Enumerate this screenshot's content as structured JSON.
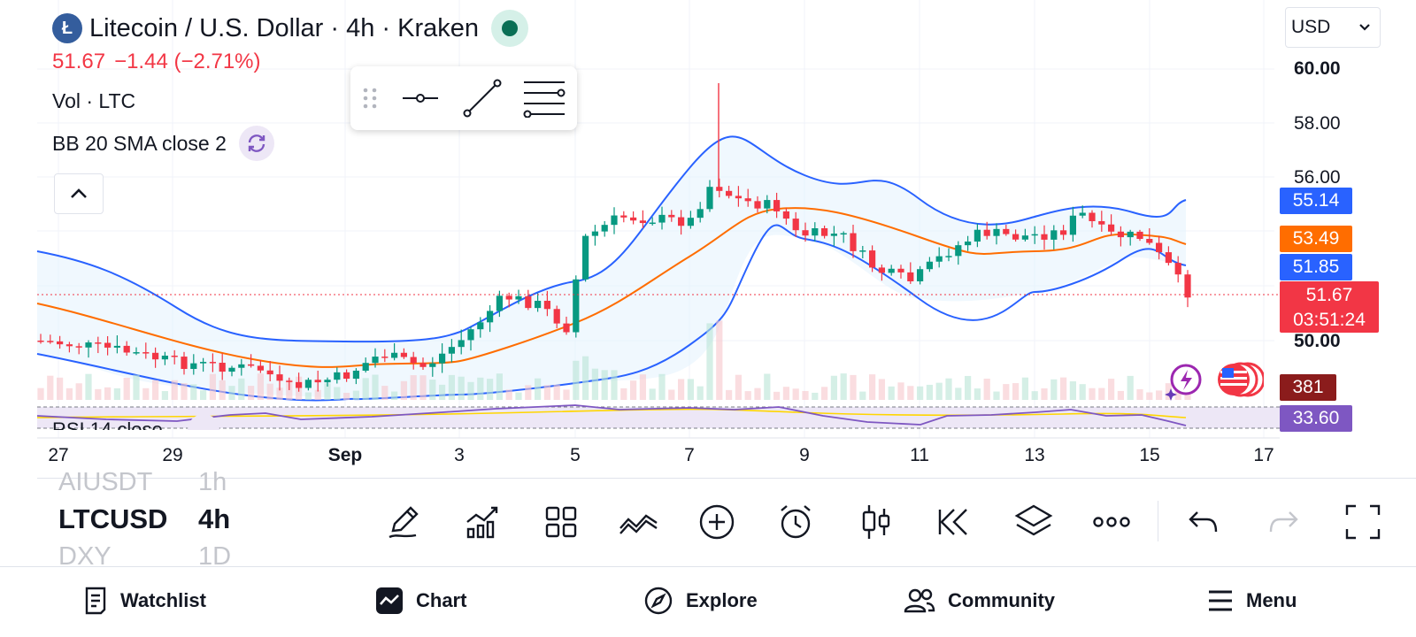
{
  "header": {
    "logo_letter": "Ł",
    "title": "Litecoin / U.S. Dollar · 4h · Kraken",
    "last_price": "51.67",
    "change": "−1.44 (−2.71%)",
    "volume_label": "Vol · LTC",
    "bb_label": "BB 20 SMA close 2",
    "currency": "USD"
  },
  "price_axis": {
    "labels": [
      "60.00",
      "58.00",
      "56.00",
      "50.00"
    ],
    "tags": {
      "bb_upper": "55.14",
      "bb_basis": "53.49",
      "bb_lower": "51.85",
      "last": "51.67",
      "countdown": "03:51:24",
      "volume": "381",
      "rsi": "33.60"
    },
    "colors": {
      "upper": "#2962ff",
      "basis": "#ff6d00",
      "last": "#f23645",
      "volume": "#8b1c1c",
      "rsi": "#7e57c2"
    }
  },
  "time_axis": {
    "labels": [
      "27",
      "29",
      "Sep",
      "3",
      "5",
      "7",
      "9",
      "11",
      "13",
      "15",
      "17"
    ]
  },
  "rsi": {
    "label": "RSI 14 close"
  },
  "symbol_picker": {
    "prev": {
      "symbol": "AIUSDT",
      "interval": "1h"
    },
    "current": {
      "symbol": "LTCUSD",
      "interval": "4h"
    },
    "next": {
      "symbol": "DXY",
      "interval": "1D"
    }
  },
  "toolbar": {
    "icons": [
      "pencil-icon",
      "indicators-icon",
      "layout-grid-icon",
      "compare-icon",
      "add-icon",
      "alert-icon",
      "candles-icon",
      "replay-icon",
      "layers-icon",
      "more-icon",
      "undo-icon",
      "redo-icon",
      "fullscreen-icon"
    ]
  },
  "bottom_nav": {
    "items": [
      {
        "label": "Watchlist",
        "icon": "watchlist-icon"
      },
      {
        "label": "Chart",
        "icon": "chart-icon"
      },
      {
        "label": "Explore",
        "icon": "compass-icon"
      },
      {
        "label": "Community",
        "icon": "community-icon"
      },
      {
        "label": "Menu",
        "icon": "hamburger-icon"
      }
    ]
  },
  "colors": {
    "up": "#089981",
    "down": "#f23645",
    "bb_fill": "#e3f2fd"
  }
}
